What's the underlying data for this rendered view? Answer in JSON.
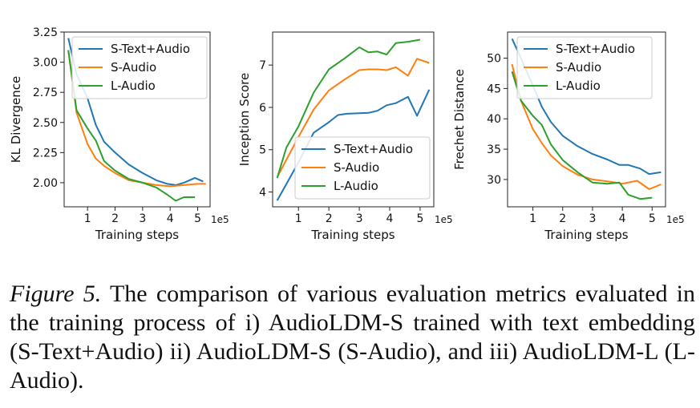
{
  "chart_data": [
    {
      "type": "line",
      "title": "",
      "xlabel": "Training steps",
      "ylabel": "KL Divergence",
      "x_multiplier": "1e5",
      "xlim": [
        0.15,
        5.45
      ],
      "ylim": [
        1.8,
        3.25
      ],
      "xticks": [
        1,
        2,
        3,
        4,
        5
      ],
      "yticks": [
        2.0,
        2.25,
        2.5,
        2.75,
        3.0,
        3.25
      ],
      "ytick_labels": [
        "2.00",
        "2.25",
        "2.50",
        "2.75",
        "3.00",
        "3.25"
      ],
      "legend_position": "top-right",
      "series": [
        {
          "name": "S-Text+Audio",
          "color": "#1f77b4",
          "x": [
            0.3,
            0.6,
            1.0,
            1.3,
            1.6,
            2.0,
            2.5,
            3.0,
            3.5,
            3.9,
            4.2,
            4.5,
            4.9,
            5.2
          ],
          "y": [
            3.2,
            2.9,
            2.7,
            2.48,
            2.34,
            2.25,
            2.15,
            2.08,
            2.02,
            1.99,
            1.98,
            2.0,
            2.04,
            2.01
          ]
        },
        {
          "name": "S-Audio",
          "color": "#ff7f0e",
          "x": [
            0.3,
            0.6,
            1.0,
            1.3,
            1.6,
            2.0,
            2.5,
            3.0,
            3.5,
            4.0,
            4.5,
            5.0,
            5.3
          ],
          "y": [
            3.1,
            2.58,
            2.32,
            2.2,
            2.14,
            2.08,
            2.02,
            2.0,
            1.98,
            1.97,
            1.98,
            1.99,
            1.99
          ]
        },
        {
          "name": "L-Audio",
          "color": "#2ca02c",
          "x": [
            0.3,
            0.6,
            1.0,
            1.3,
            1.6,
            2.0,
            2.5,
            3.0,
            3.5,
            3.9,
            4.2,
            4.5,
            4.9
          ],
          "y": [
            3.1,
            2.6,
            2.45,
            2.35,
            2.18,
            2.1,
            2.03,
            2.0,
            1.96,
            1.9,
            1.85,
            1.88,
            1.88
          ]
        }
      ]
    },
    {
      "type": "line",
      "title": "",
      "xlabel": "Training steps",
      "ylabel": "Inception Score",
      "x_multiplier": "1e5",
      "xlim": [
        0.15,
        5.45
      ],
      "ylim": [
        3.65,
        7.78
      ],
      "xticks": [
        1,
        2,
        3,
        4,
        5
      ],
      "yticks": [
        4,
        5,
        6,
        7
      ],
      "ytick_labels": [
        "4",
        "5",
        "6",
        "7"
      ],
      "legend_position": "bottom-right",
      "series": [
        {
          "name": "S-Text+Audio",
          "color": "#1f77b4",
          "x": [
            0.3,
            1.0,
            1.5,
            2.0,
            2.3,
            2.6,
            3.0,
            3.3,
            3.6,
            3.9,
            4.2,
            4.6,
            4.9,
            5.3
          ],
          "y": [
            3.8,
            4.7,
            5.4,
            5.65,
            5.82,
            5.85,
            5.86,
            5.87,
            5.92,
            6.05,
            6.1,
            6.25,
            5.8,
            6.42
          ]
        },
        {
          "name": "S-Audio",
          "color": "#ff7f0e",
          "x": [
            0.3,
            1.0,
            1.5,
            2.0,
            2.5,
            3.0,
            3.3,
            3.6,
            3.9,
            4.2,
            4.6,
            4.9,
            5.3
          ],
          "y": [
            4.35,
            5.3,
            5.95,
            6.4,
            6.65,
            6.88,
            6.9,
            6.9,
            6.88,
            6.95,
            6.75,
            7.15,
            7.05
          ]
        },
        {
          "name": "L-Audio",
          "color": "#2ca02c",
          "x": [
            0.3,
            0.6,
            1.0,
            1.5,
            2.0,
            2.5,
            3.0,
            3.3,
            3.6,
            3.9,
            4.2,
            4.6,
            5.0
          ],
          "y": [
            4.33,
            5.05,
            5.55,
            6.35,
            6.9,
            7.15,
            7.42,
            7.3,
            7.32,
            7.25,
            7.52,
            7.55,
            7.6
          ]
        }
      ]
    },
    {
      "type": "line",
      "title": "",
      "xlabel": "Training steps",
      "ylabel": "Frechet Distance",
      "x_multiplier": "1e5",
      "xlim": [
        0.15,
        5.45
      ],
      "ylim": [
        25.5,
        54.3
      ],
      "xticks": [
        1,
        2,
        3,
        4,
        5
      ],
      "yticks": [
        30,
        35,
        40,
        45,
        50
      ],
      "ytick_labels": [
        "30",
        "35",
        "40",
        "45",
        "50"
      ],
      "legend_position": "top-right",
      "series": [
        {
          "name": "S-Text+Audio",
          "color": "#1f77b4",
          "x": [
            0.3,
            0.6,
            1.0,
            1.3,
            1.6,
            2.0,
            2.5,
            3.0,
            3.5,
            3.9,
            4.2,
            4.6,
            4.9,
            5.3
          ],
          "y": [
            53.2,
            50,
            45.5,
            42,
            39.5,
            37.2,
            35.5,
            34.2,
            33.3,
            32.4,
            32.4,
            31.8,
            30.9,
            31.2
          ]
        },
        {
          "name": "S-Audio",
          "color": "#ff7f0e",
          "x": [
            0.3,
            0.6,
            1.0,
            1.3,
            1.6,
            2.0,
            2.5,
            3.0,
            3.5,
            4.0,
            4.5,
            4.9,
            5.3
          ],
          "y": [
            49,
            43,
            38.3,
            36,
            34,
            32.2,
            30.8,
            30.0,
            29.7,
            29.3,
            29.8,
            28.4,
            29.2
          ]
        },
        {
          "name": "L-Audio",
          "color": "#2ca02c",
          "x": [
            0.3,
            0.6,
            1.0,
            1.3,
            1.6,
            2.0,
            2.5,
            3.0,
            3.5,
            3.9,
            4.2,
            4.6,
            5.0
          ],
          "y": [
            47.8,
            43,
            40.5,
            39,
            35.8,
            33.2,
            31.2,
            29.5,
            29.3,
            29.5,
            27.5,
            26.8,
            27.0
          ]
        }
      ]
    }
  ],
  "caption": {
    "label": "Figure 5.",
    "text": " The comparison of various evaluation metrics evaluated in the training process of i) AudioLDM-S trained with text embedding (S-Text+Audio) ii) AudioLDM-S (S-Audio), and iii) AudioLDM-L (L-Audio)."
  }
}
